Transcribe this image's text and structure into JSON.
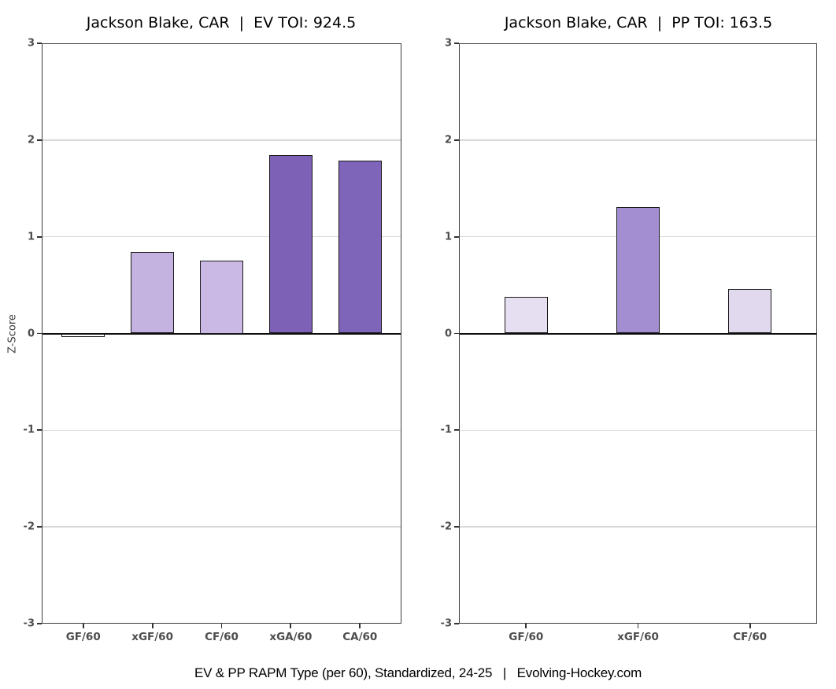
{
  "page": {
    "background": "#ffffff",
    "caption": "EV & PP RAPM Type (per 60), Standardized, 24-25   |   Evolving-Hockey.com"
  },
  "chart_data": [
    {
      "type": "bar",
      "title": "Jackson Blake, CAR  |  EV TOI: 924.5",
      "player": "Jackson Blake",
      "team": "CAR",
      "strength": "EV",
      "toi": 924.5,
      "xlabel": "",
      "ylabel": "Z-Score",
      "ylim": [
        -3,
        3
      ],
      "yticks": [
        3,
        2,
        1,
        0,
        -1,
        -2,
        -3
      ],
      "gridlines": [
        2,
        1,
        -1,
        -2
      ],
      "grid": "horizontal-light",
      "legend": "none",
      "categories": [
        "GF/60",
        "xGF/60",
        "CF/60",
        "xGA/60",
        "CA/60"
      ],
      "values": [
        -0.04,
        0.84,
        0.75,
        1.84,
        1.79
      ],
      "bar_colors": [
        "#ffffff",
        "#c4b2e0",
        "#c9b9e4",
        "#7c61b7",
        "#7f65ba"
      ],
      "bar_edge_color": "#1a1a1a",
      "zero_line_color": "#0d0d0d",
      "gridline_color": "#d9d9d9"
    },
    {
      "type": "bar",
      "title": "Jackson Blake, CAR  |  PP TOI: 163.5",
      "player": "Jackson Blake",
      "team": "CAR",
      "strength": "PP",
      "toi": 163.5,
      "xlabel": "",
      "ylabel": "",
      "ylim": [
        -3,
        3
      ],
      "yticks": [
        3,
        2,
        1,
        0,
        -1,
        -2,
        -3
      ],
      "gridlines": [
        2,
        1,
        -1,
        -2
      ],
      "grid": "horizontal-light",
      "legend": "none",
      "categories": [
        "GF/60",
        "xGF/60",
        "CF/60"
      ],
      "values": [
        0.38,
        1.31,
        0.46
      ],
      "bar_colors": [
        "#e5dff1",
        "#a28ed0",
        "#e1daee"
      ],
      "bar_edge_color": "#1a1a1a",
      "zero_line_color": "#0d0d0d",
      "gridline_color": "#d9d9d9"
    }
  ]
}
